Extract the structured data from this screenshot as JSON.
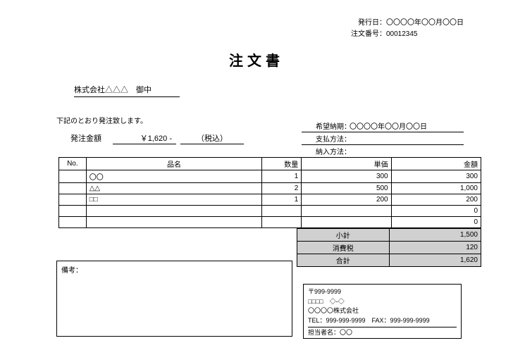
{
  "meta": {
    "issue_label": "発行日",
    "issue_value": "〇〇〇〇年〇〇月〇〇日",
    "order_label": "注文番号",
    "order_value": "00012345"
  },
  "title": "注文書",
  "recipient": "株式会社△△△　御中",
  "intro": "下記のとおり発注致します。",
  "amount": {
    "label": "発注金額",
    "value": "￥1,620 -",
    "tax": "（税込）"
  },
  "delivery": {
    "due_label": "希望納期",
    "due_value": "〇〇〇〇年〇〇月〇〇日",
    "pay_label": "支払方法",
    "pay_value": "",
    "ship_label": "納入方法",
    "ship_value": ""
  },
  "headers": {
    "no": "No.",
    "name": "品名",
    "qty": "数量",
    "unit": "単価",
    "amt": "金額"
  },
  "rows": [
    {
      "no": "",
      "name": "〇〇",
      "qty": "1",
      "unit": "300",
      "amt": "300"
    },
    {
      "no": "",
      "name": "△△",
      "qty": "2",
      "unit": "500",
      "amt": "1,000"
    },
    {
      "no": "",
      "name": "□□",
      "qty": "1",
      "unit": "200",
      "amt": "200"
    },
    {
      "no": "",
      "name": "",
      "qty": "",
      "unit": "",
      "amt": "0"
    },
    {
      "no": "",
      "name": "",
      "qty": "",
      "unit": "",
      "amt": "0"
    }
  ],
  "totals": {
    "subtotal_label": "小計",
    "subtotal_value": "1,500",
    "tax_label": "消費税",
    "tax_value": "120",
    "total_label": "合計",
    "total_value": "1,620"
  },
  "remarks_label": "備考：",
  "vendor": {
    "postal": "〒999-9999",
    "addr": "□□□□　◇-◇",
    "company": "〇〇〇〇株式会社",
    "tel_fax": "TEL：999-999-9999　FAX：999-999-9999",
    "staff": "担当者名：〇〇"
  }
}
